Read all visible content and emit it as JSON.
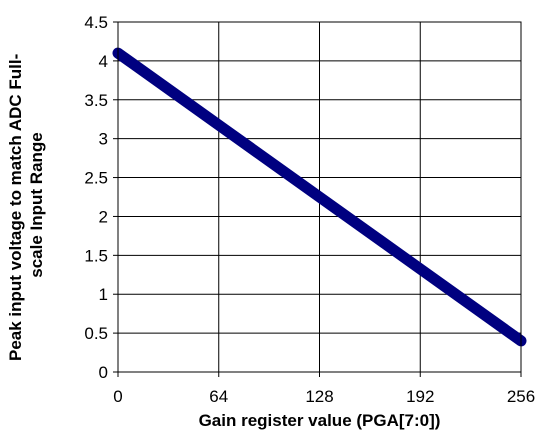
{
  "chart_data": {
    "type": "line",
    "title": "",
    "xlabel": "Gain register value (PGA[7:0])",
    "ylabel_lines": [
      "Peak input voltage to match ADC Full-",
      "scale Input Range"
    ],
    "x_ticks": [
      0,
      64,
      128,
      192,
      256
    ],
    "y_ticks": [
      0,
      0.5,
      1,
      1.5,
      2,
      2.5,
      3,
      3.5,
      4,
      4.5
    ],
    "xlim": [
      0,
      256
    ],
    "ylim": [
      0,
      4.5
    ],
    "grid": true,
    "legend": "none",
    "series": [
      {
        "x": [
          0,
          256
        ],
        "y": [
          4.1,
          0.4
        ],
        "color": "#000080"
      }
    ]
  }
}
